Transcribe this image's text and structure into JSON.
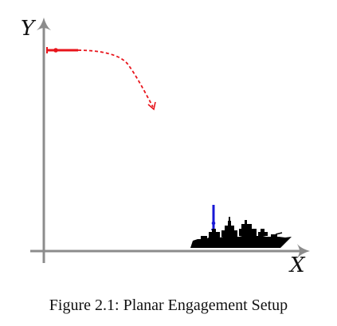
{
  "axes": {
    "y_label": "Y",
    "x_label": "X",
    "axis_color": "#8c8c8c"
  },
  "threat": {
    "color": "#e8141b"
  },
  "interceptor": {
    "color": "#1818d6"
  },
  "ship": {
    "color": "#000000"
  },
  "caption": "Figure 2.1: Planar Engagement Setup"
}
